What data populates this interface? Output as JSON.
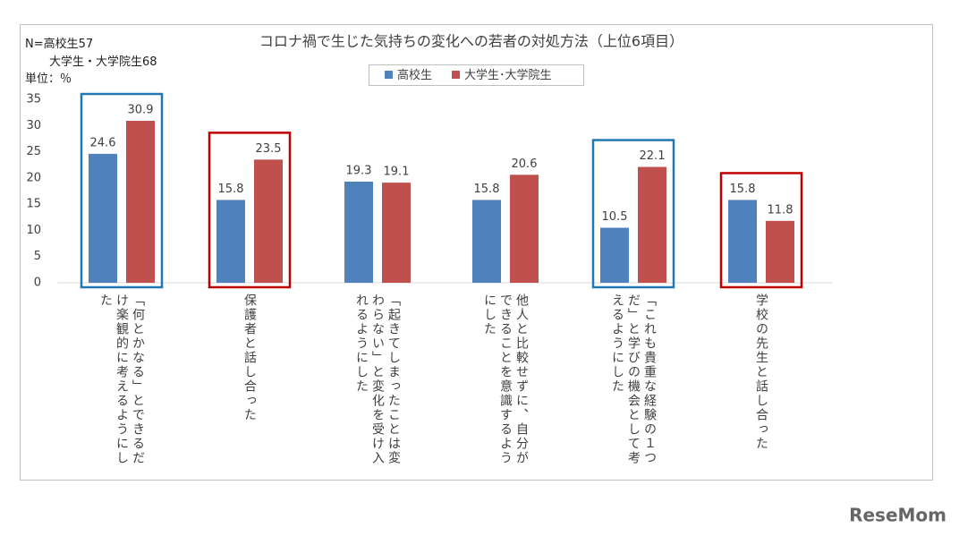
{
  "chart_data": {
    "type": "bar",
    "title": "コロナ禍で生じた気持ちの変化への若者の対処方法（上位6項目）",
    "notes": [
      "N=高校生57",
      "大学生・大学院生68",
      "単位：％"
    ],
    "categories": [
      "「何とかなる」とできるだけ楽観的に考えるようにした",
      "保護者と話し合った",
      "「起きてしまったことは変わらない」と変化を受け入れるようにした",
      "他人と比較せずに、自分ができることを意識するようにした",
      "「これも貴重な経験の１つだ」と学びの機会として考えるようにした",
      "学校の先生と話し合った"
    ],
    "series": [
      {
        "name": "高校生",
        "color": "#4f81bd",
        "values": [
          24.6,
          15.8,
          19.3,
          15.8,
          10.5,
          15.8
        ]
      },
      {
        "name": "大学生･大学院生",
        "color": "#c0504d",
        "values": [
          30.9,
          23.5,
          19.1,
          20.6,
          22.1,
          11.8
        ]
      }
    ],
    "ylim": [
      0,
      35
    ],
    "yticks": [
      0,
      5,
      10,
      15,
      20,
      25,
      30,
      35
    ],
    "grid": false,
    "legend": "top",
    "watermark": "ReseMom"
  }
}
